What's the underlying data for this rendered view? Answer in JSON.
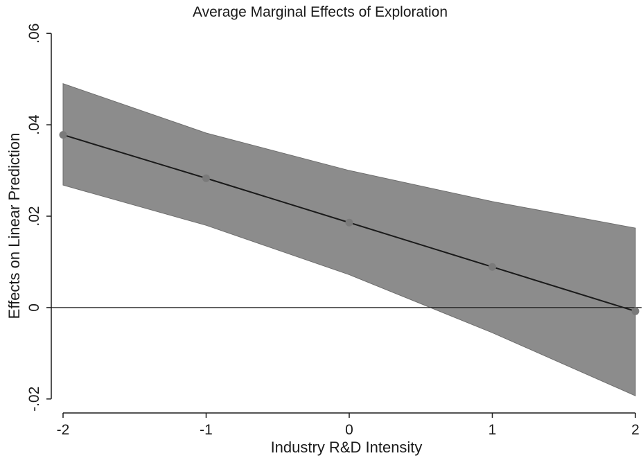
{
  "chart_data": {
    "type": "line",
    "title": "Average Marginal Effects of Exploration",
    "xlabel": "Industry R&D Intensity",
    "ylabel": "Effects on Linear Prediction",
    "x": [
      -2,
      -1,
      0,
      1,
      2
    ],
    "series": [
      {
        "values": [
          0.0378,
          0.0283,
          0.0186,
          0.0089,
          -0.0008
        ],
        "ci_lower": [
          0.0268,
          0.018,
          0.0072,
          -0.0055,
          -0.0193
        ],
        "ci_upper": [
          0.049,
          0.0382,
          0.03,
          0.0232,
          0.0174
        ]
      }
    ],
    "xlim": [
      -2,
      2
    ],
    "ylim": [
      -0.022,
      0.062
    ],
    "xticks": [
      -2,
      -1,
      0,
      1,
      2
    ],
    "xtick_labels": [
      "-2",
      "-1",
      "0",
      "1",
      "2"
    ],
    "yticks": [
      -0.02,
      0,
      0.02,
      0.04,
      0.06
    ],
    "ytick_labels": [
      "-.02",
      "0",
      ".02",
      ".04",
      ".06"
    ],
    "reference_line_y": 0,
    "grid": false,
    "colors": {
      "band": "#8c8c8c",
      "band_edge": "#6e6e6e",
      "line": "#1a1a1a",
      "marker": "#7a7a7a",
      "axis": "#1a1a1a",
      "reference": "#1a1a1a"
    }
  }
}
